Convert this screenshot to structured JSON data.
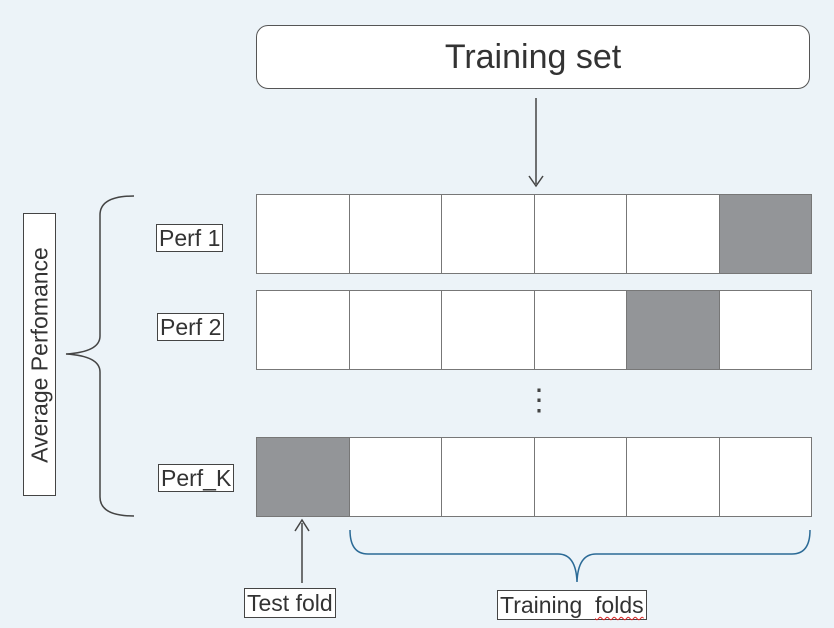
{
  "title_box": {
    "label": "Training set"
  },
  "rows": [
    {
      "label": "Perf  1",
      "test_fold_index": 5
    },
    {
      "label": "Perf 2",
      "test_fold_index": 4
    },
    {
      "label": "Perf_K",
      "test_fold_index": 0
    }
  ],
  "folds_per_row": 6,
  "ellipsis": "⋮",
  "side_label": "Average Perfomance",
  "test_fold_label": "Test fold",
  "training_folds_label": {
    "prefix": "Training  ",
    "word": "folds"
  },
  "colors": {
    "background": "#ecf3f8",
    "test_fold": "#939598",
    "training_fold": "#ffffff",
    "brace": "#2b6a96",
    "outline": "#777777"
  }
}
